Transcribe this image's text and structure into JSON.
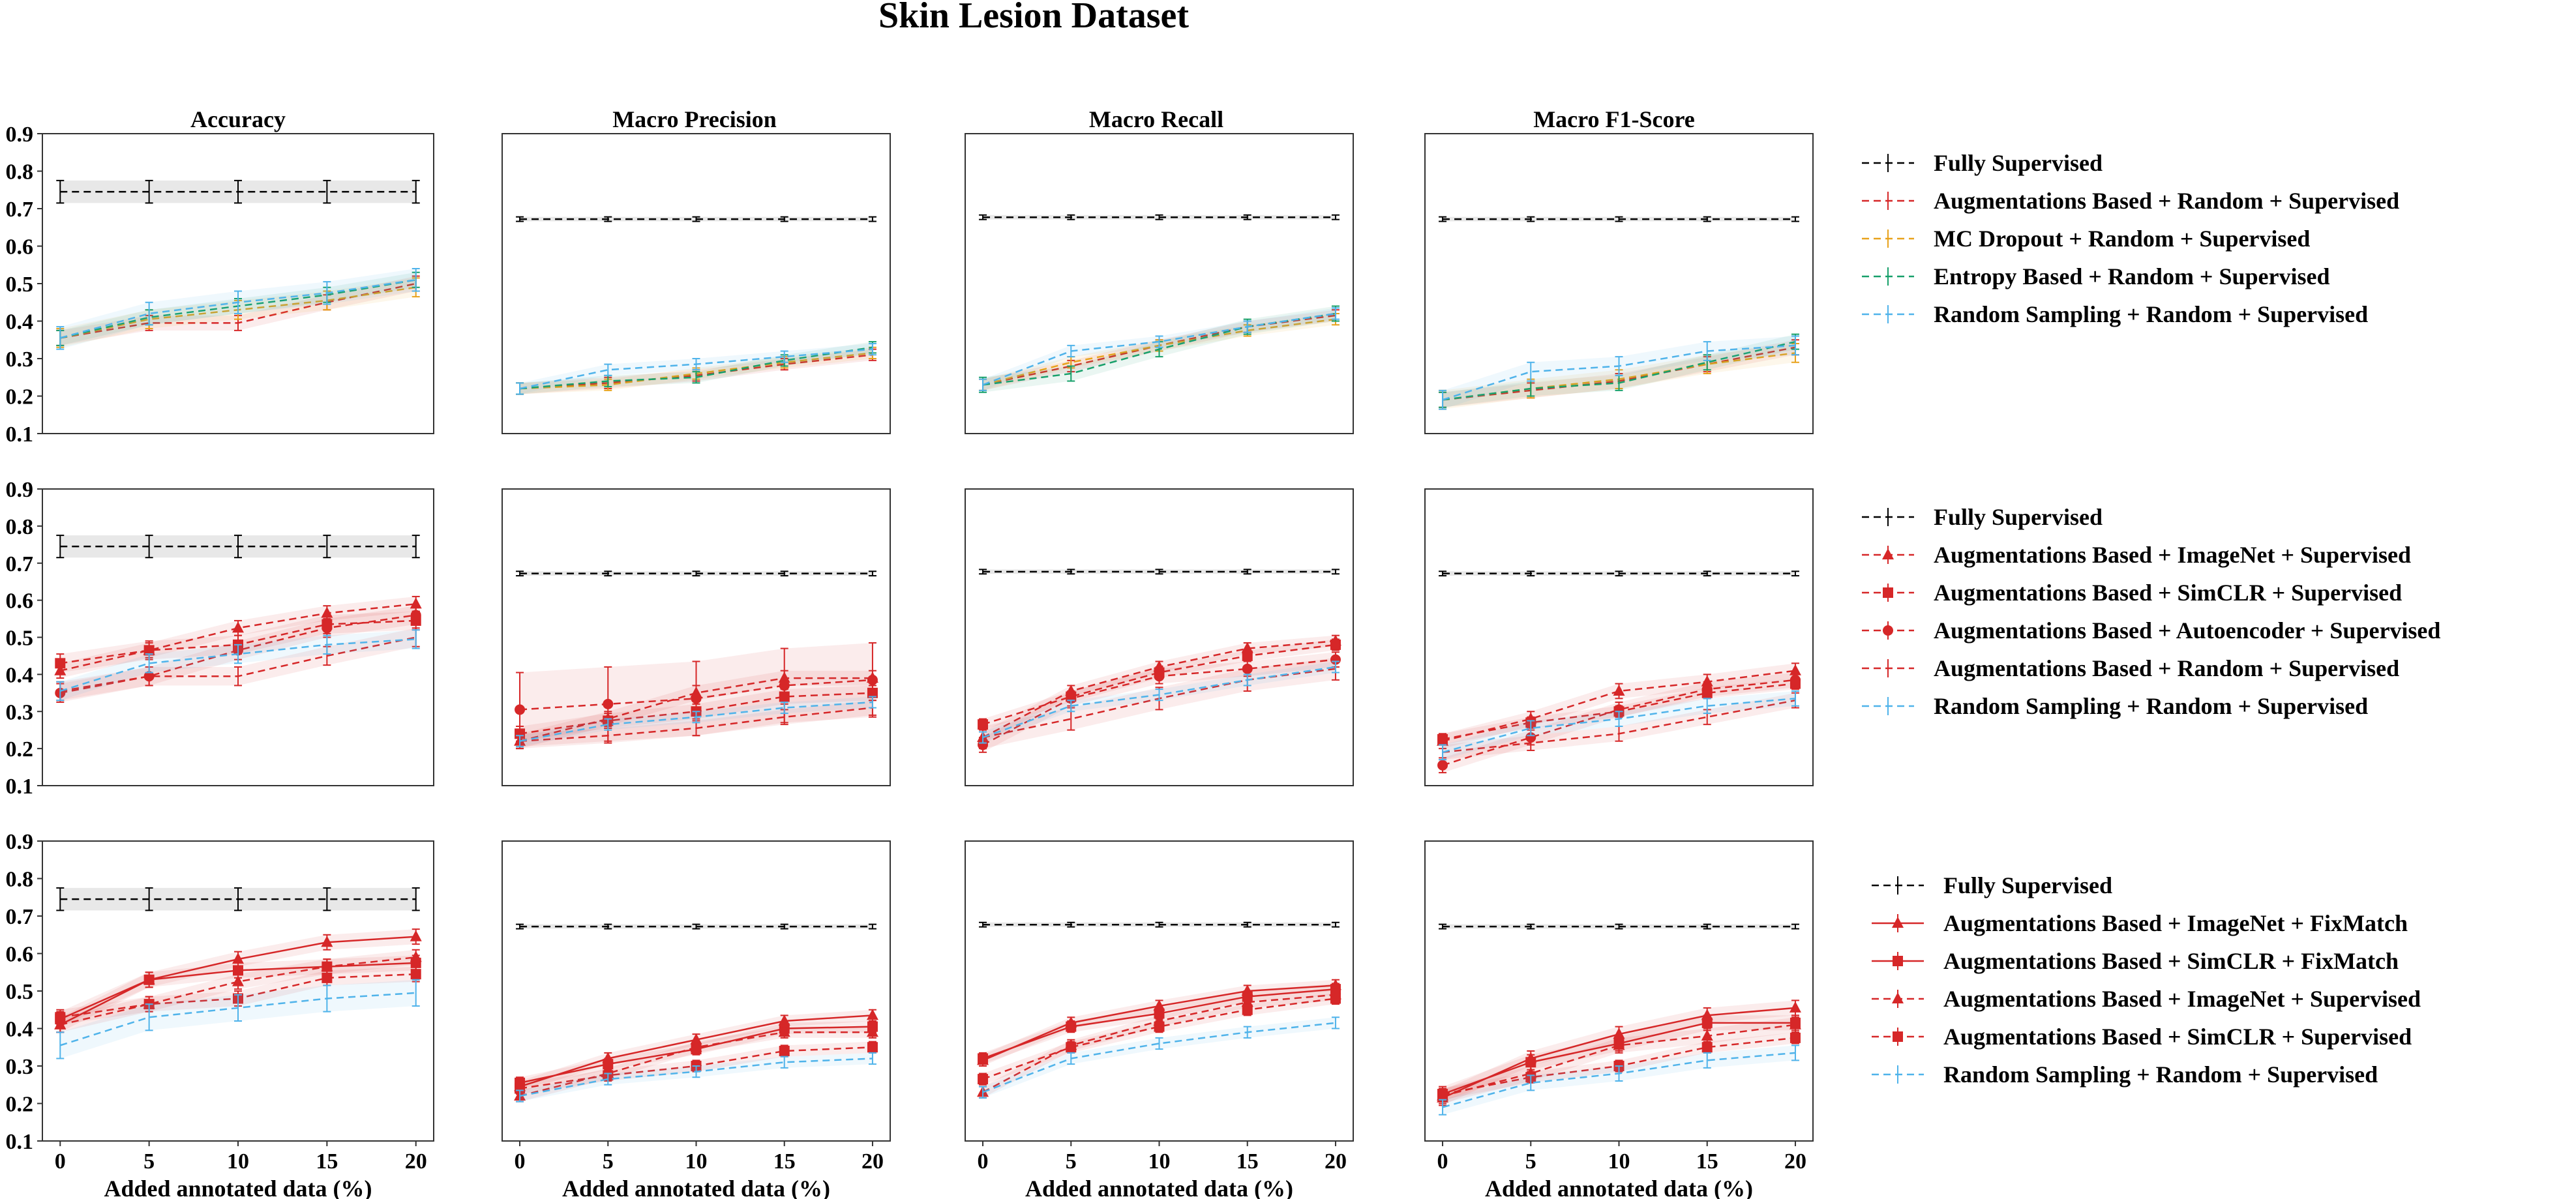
{
  "title": "Skin Lesion Dataset",
  "columns": [
    "Accuracy",
    "Macro Precision",
    "Macro Recall",
    "Macro F1-Score"
  ],
  "xlabel": "Added annotated data (%)",
  "colors": {
    "black": "#000000",
    "red": "#d62728",
    "orange": "#e8a21c",
    "green": "#17a06a",
    "blue": "#4fb3ea"
  },
  "chart_data": [
    {
      "type": "line",
      "row": 1,
      "x": [
        0,
        5,
        10,
        15,
        20
      ],
      "xticks": [
        "0",
        "5",
        "10",
        "15",
        "20"
      ],
      "ylim": [
        0.1,
        0.9
      ],
      "yticks": [
        "0.1",
        "0.2",
        "0.3",
        "0.4",
        "0.5",
        "0.6",
        "0.7",
        "0.8",
        "0.9"
      ],
      "legend": "right",
      "series": [
        {
          "name": "Fully Supervised",
          "color": "#000000",
          "dash": true,
          "marker": "none",
          "band": true,
          "values": [
            [
              0.745,
              0.745,
              0.745,
              0.745,
              0.745
            ],
            [
              0.672,
              0.672,
              0.672,
              0.672,
              0.672
            ],
            [
              0.677,
              0.677,
              0.677,
              0.677,
              0.677
            ],
            [
              0.672,
              0.672,
              0.672,
              0.672,
              0.672
            ]
          ],
          "err": [
            0.03,
            0.006,
            0.006,
            0.006
          ]
        },
        {
          "name": "Augmentations Based +  Random + Supervised",
          "color": "#d62728",
          "dash": true,
          "marker": "none",
          "band": true,
          "values": [
            [
              0.355,
              0.395,
              0.395,
              0.45,
              0.5
            ],
            [
              0.22,
              0.235,
              0.255,
              0.285,
              0.31
            ],
            [
              0.23,
              0.28,
              0.335,
              0.385,
              0.415
            ],
            [
              0.19,
              0.215,
              0.24,
              0.285,
              0.33
            ]
          ],
          "err": [
            0.02,
            0.015,
            0.015,
            0.02
          ]
        },
        {
          "name": "MC Dropout +  Random + Supervised",
          "color": "#e8a21c",
          "dash": true,
          "marker": "none",
          "band": true,
          "values": [
            [
              0.355,
              0.405,
              0.43,
              0.455,
              0.49
            ],
            [
              0.22,
              0.23,
              0.26,
              0.29,
              0.315
            ],
            [
              0.23,
              0.29,
              0.335,
              0.375,
              0.405
            ],
            [
              0.19,
              0.22,
              0.245,
              0.285,
              0.315
            ]
          ],
          "err": [
            0.025,
            0.015,
            0.015,
            0.025
          ]
        },
        {
          "name": "Entropy Based +  Random + Supervised",
          "color": "#17a06a",
          "dash": true,
          "marker": "none",
          "band": true,
          "values": [
            [
              0.355,
              0.41,
              0.44,
              0.47,
              0.51
            ],
            [
              0.22,
              0.24,
              0.25,
              0.295,
              0.33
            ],
            [
              0.23,
              0.26,
              0.325,
              0.385,
              0.42
            ],
            [
              0.19,
              0.22,
              0.235,
              0.29,
              0.345
            ]
          ],
          "err": [
            0.02,
            0.015,
            0.02,
            0.02
          ]
        },
        {
          "name": "Random Sampling +  Random + Supervised",
          "color": "#4fb3ea",
          "dash": true,
          "marker": "none",
          "band": true,
          "values": [
            [
              0.355,
              0.42,
              0.45,
              0.475,
              0.51
            ],
            [
              0.22,
              0.27,
              0.285,
              0.305,
              0.325
            ],
            [
              0.23,
              0.32,
              0.345,
              0.385,
              0.42
            ],
            [
              0.19,
              0.265,
              0.28,
              0.32,
              0.335
            ]
          ],
          "err": [
            0.03,
            0.015,
            0.015,
            0.025
          ]
        }
      ]
    },
    {
      "type": "line",
      "row": 2,
      "x": [
        0,
        5,
        10,
        15,
        20
      ],
      "xticks": [
        "0",
        "5",
        "10",
        "15",
        "20"
      ],
      "ylim": [
        0.1,
        0.9
      ],
      "yticks": [
        "0.1",
        "0.2",
        "0.3",
        "0.4",
        "0.5",
        "0.6",
        "0.7",
        "0.8",
        "0.9"
      ],
      "legend": "right",
      "series": [
        {
          "name": "Fully Supervised",
          "color": "#000000",
          "dash": true,
          "marker": "none",
          "band": true,
          "values": [
            [
              0.745,
              0.745,
              0.745,
              0.745,
              0.745
            ],
            [
              0.672,
              0.672,
              0.672,
              0.672,
              0.672
            ],
            [
              0.677,
              0.677,
              0.677,
              0.677,
              0.677
            ],
            [
              0.672,
              0.672,
              0.672,
              0.672,
              0.672
            ]
          ],
          "err": [
            0.03,
            0.006,
            0.006,
            0.006
          ]
        },
        {
          "name": "Augmentations Based + ImageNet + Supervised",
          "color": "#d62728",
          "dash": true,
          "marker": "triangle",
          "band": true,
          "values": [
            [
              0.41,
              0.465,
              0.525,
              0.565,
              0.59
            ],
            [
              0.22,
              0.28,
              0.35,
              0.39,
              0.39
            ],
            [
              0.23,
              0.355,
              0.42,
              0.47,
              0.49
            ],
            [
              0.22,
              0.28,
              0.355,
              0.38,
              0.41
            ]
          ],
          "err": [
            0.02,
            0.02,
            0.015,
            0.02
          ]
        },
        {
          "name": "Augmentations Based + SimCLR + Supervised",
          "color": "#d62728",
          "dash": true,
          "marker": "square",
          "band": true,
          "values": [
            [
              0.43,
              0.465,
              0.48,
              0.535,
              0.545
            ],
            [
              0.24,
              0.275,
              0.3,
              0.34,
              0.35
            ],
            [
              0.265,
              0.34,
              0.405,
              0.45,
              0.48
            ],
            [
              0.225,
              0.27,
              0.3,
              0.35,
              0.375
            ]
          ],
          "err": [
            0.025,
            0.02,
            0.015,
            0.015
          ]
        },
        {
          "name": "Augmentations Based + Autoencoder + Supervised",
          "color": "#d62728",
          "dash": true,
          "marker": "circle",
          "band": true,
          "values": [
            [
              0.35,
              0.395,
              0.465,
              0.525,
              0.56
            ],
            [
              0.305,
              0.32,
              0.335,
              0.37,
              0.385
            ],
            [
              0.21,
              0.335,
              0.395,
              0.415,
              0.44
            ],
            [
              0.155,
              0.23,
              0.305,
              0.36,
              0.385
            ]
          ],
          "err": [
            0.025,
            0.1,
            0.02,
            0.02
          ]
        },
        {
          "name": "Augmentations Based +  Random + Supervised",
          "color": "#d62728",
          "dash": true,
          "marker": "none",
          "band": true,
          "values": [
            [
              0.355,
              0.395,
              0.395,
              0.45,
              0.5
            ],
            [
              0.22,
              0.235,
              0.255,
              0.285,
              0.31
            ],
            [
              0.23,
              0.28,
              0.335,
              0.385,
              0.415
            ],
            [
              0.19,
              0.215,
              0.24,
              0.285,
              0.33
            ]
          ],
          "err": [
            0.025,
            0.02,
            0.03,
            0.02
          ]
        },
        {
          "name": "Random Sampling +  Random + Supervised",
          "color": "#4fb3ea",
          "dash": true,
          "marker": "none",
          "band": true,
          "values": [
            [
              0.355,
              0.43,
              0.455,
              0.48,
              0.495
            ],
            [
              0.22,
              0.265,
              0.285,
              0.31,
              0.325
            ],
            [
              0.23,
              0.315,
              0.345,
              0.385,
              0.42
            ],
            [
              0.19,
              0.255,
              0.28,
              0.315,
              0.335
            ]
          ],
          "err": [
            0.025,
            0.015,
            0.015,
            0.02
          ]
        }
      ]
    },
    {
      "type": "line",
      "row": 3,
      "x": [
        0,
        5,
        10,
        15,
        20
      ],
      "xticks": [
        "0",
        "5",
        "10",
        "15",
        "20"
      ],
      "ylim": [
        0.1,
        0.9
      ],
      "yticks": [
        "0.1",
        "0.2",
        "0.3",
        "0.4",
        "0.5",
        "0.6",
        "0.7",
        "0.8",
        "0.9"
      ],
      "legend": "right",
      "series": [
        {
          "name": "Fully Supervised",
          "color": "#000000",
          "dash": true,
          "marker": "none",
          "band": true,
          "values": [
            [
              0.745,
              0.745,
              0.745,
              0.745,
              0.745
            ],
            [
              0.672,
              0.672,
              0.672,
              0.672,
              0.672
            ],
            [
              0.677,
              0.677,
              0.677,
              0.677,
              0.677
            ],
            [
              0.672,
              0.672,
              0.672,
              0.672,
              0.672
            ]
          ],
          "err": [
            0.03,
            0.006,
            0.006,
            0.006
          ]
        },
        {
          "name": "Augmentations Based + ImageNet + FixMatch",
          "color": "#d62728",
          "dash": false,
          "marker": "triangle",
          "band": true,
          "values": [
            [
              0.41,
              0.53,
              0.585,
              0.63,
              0.645
            ],
            [
              0.245,
              0.32,
              0.37,
              0.42,
              0.435
            ],
            [
              0.315,
              0.415,
              0.46,
              0.5,
              0.515
            ],
            [
              0.215,
              0.32,
              0.385,
              0.435,
              0.455
            ]
          ],
          "err": [
            0.02,
            0.015,
            0.015,
            0.02
          ]
        },
        {
          "name": "Augmentations Based + SimCLR + FixMatch",
          "color": "#d62728",
          "dash": false,
          "marker": "square",
          "band": true,
          "values": [
            [
              0.425,
              0.53,
              0.555,
              0.565,
              0.575
            ],
            [
              0.255,
              0.305,
              0.345,
              0.4,
              0.405
            ],
            [
              0.32,
              0.405,
              0.44,
              0.485,
              0.505
            ],
            [
              0.225,
              0.31,
              0.36,
              0.415,
              0.415
            ]
          ],
          "err": [
            0.02,
            0.015,
            0.015,
            0.02
          ]
        },
        {
          "name": "Augmentations Based + ImageNet + Supervised",
          "color": "#d62728",
          "dash": true,
          "marker": "triangle",
          "band": true,
          "values": [
            [
              0.41,
              0.465,
              0.525,
              0.565,
              0.59
            ],
            [
              0.22,
              0.28,
              0.35,
              0.39,
              0.39
            ],
            [
              0.23,
              0.355,
              0.42,
              0.47,
              0.49
            ],
            [
              0.22,
              0.28,
              0.355,
              0.38,
              0.41
            ]
          ],
          "err": [
            0.02,
            0.015,
            0.015,
            0.02
          ]
        },
        {
          "name": "Augmentations Based + SimCLR + Supervised",
          "color": "#d62728",
          "dash": true,
          "marker": "square",
          "band": true,
          "values": [
            [
              0.43,
              0.465,
              0.48,
              0.535,
              0.545
            ],
            [
              0.24,
              0.275,
              0.3,
              0.34,
              0.35
            ],
            [
              0.265,
              0.35,
              0.405,
              0.45,
              0.48
            ],
            [
              0.225,
              0.27,
              0.3,
              0.35,
              0.375
            ]
          ],
          "err": [
            0.02,
            0.015,
            0.015,
            0.015
          ]
        },
        {
          "name": "Random Sampling +  Random + Supervised",
          "color": "#4fb3ea",
          "dash": true,
          "marker": "none",
          "band": true,
          "values": [
            [
              0.355,
              0.43,
              0.455,
              0.48,
              0.495
            ],
            [
              0.22,
              0.265,
              0.285,
              0.31,
              0.32
            ],
            [
              0.23,
              0.32,
              0.36,
              0.39,
              0.415
            ],
            [
              0.19,
              0.255,
              0.28,
              0.315,
              0.335
            ]
          ],
          "err": [
            0.035,
            0.015,
            0.015,
            0.02
          ]
        }
      ]
    }
  ]
}
